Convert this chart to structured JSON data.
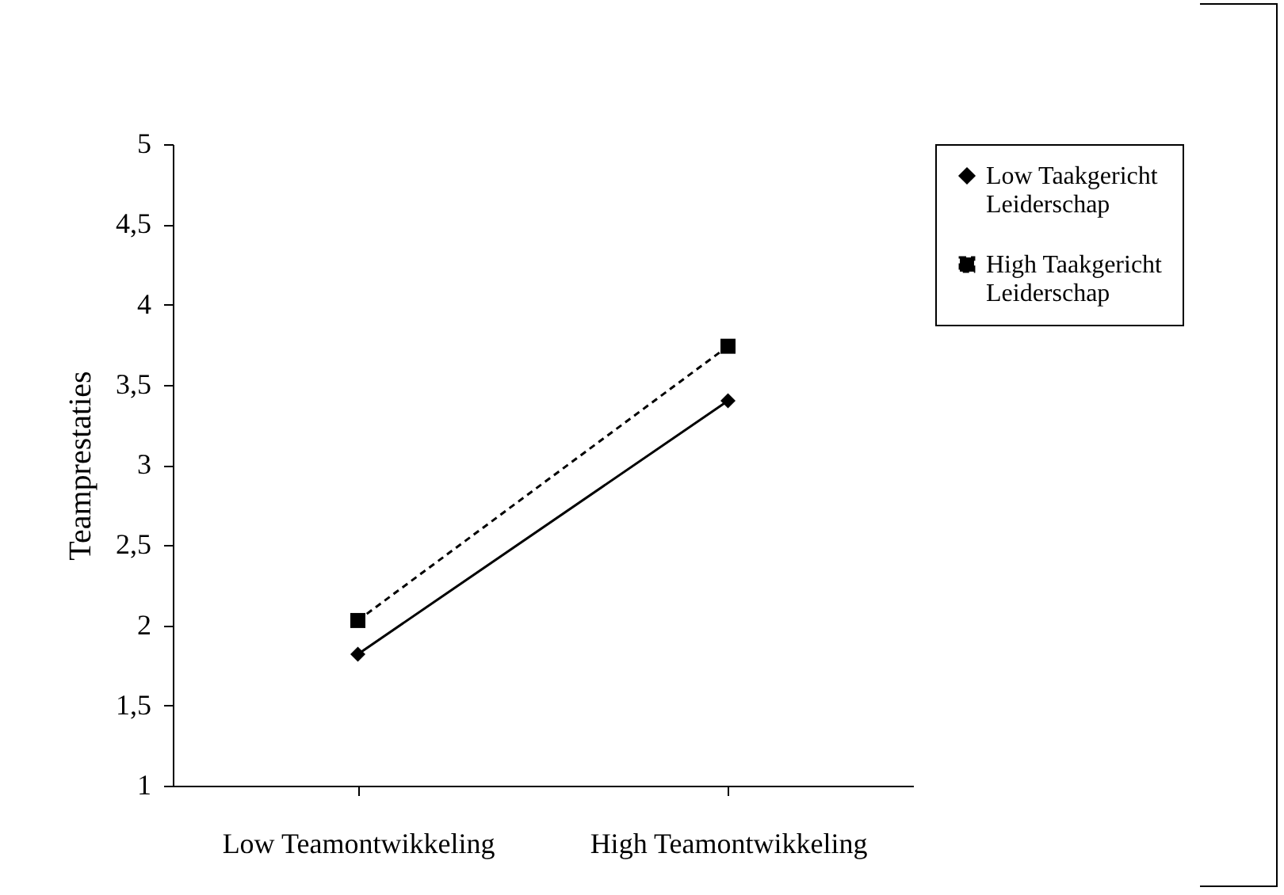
{
  "chart_data": {
    "type": "line",
    "ylabel": "Teamprestaties",
    "categories": [
      "Low Teamontwikkeling",
      "High Teamontwikkeling"
    ],
    "series": [
      {
        "name": "Low Taakgericht Leiderschap",
        "color": "#000000",
        "values": [
          1.82,
          3.4
        ],
        "marker": "diamond",
        "line_style": "solid"
      },
      {
        "name": "High Taakgericht Leiderschap",
        "color": "#000000",
        "values": [
          2.03,
          3.74
        ],
        "marker": "square",
        "line_style": "dashed"
      }
    ],
    "ylim": [
      1,
      5
    ],
    "yticks": [
      1,
      {
        "value": 1.5,
        "label": "1,5"
      },
      2,
      {
        "value": 2.5,
        "label": "2,5"
      },
      3,
      {
        "value": 3.5,
        "label": "3,5"
      },
      4,
      {
        "value": 4.5,
        "label": "4,5"
      },
      5
    ],
    "grid": false,
    "legend": "right"
  }
}
